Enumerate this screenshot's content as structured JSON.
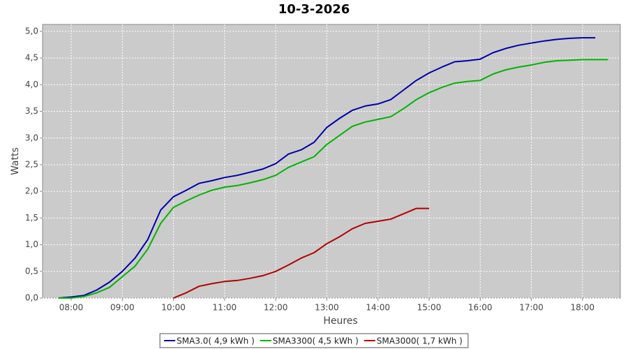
{
  "chart_data": {
    "type": "line",
    "title": "10-3-2026",
    "x_label": "Heures",
    "y_label": "Watts",
    "x": [
      7.75,
      8,
      8.25,
      8.5,
      8.75,
      9,
      9.25,
      9.5,
      9.75,
      10,
      10.25,
      10.5,
      10.75,
      11,
      11.25,
      11.5,
      11.75,
      12,
      12.25,
      12.5,
      12.75,
      13,
      13.25,
      13.5,
      13.75,
      14,
      14.25,
      14.5,
      14.75,
      15,
      15.25,
      15.5,
      15.75,
      16,
      16.25,
      16.5,
      16.75,
      17,
      17.25,
      17.5,
      17.75,
      18,
      18.25,
      18.5
    ],
    "series": [
      {
        "name": "SMA3.0( 4,9 kWh )",
        "color": "#0000aa",
        "values": [
          0.0,
          0.02,
          0.05,
          0.15,
          0.3,
          0.5,
          0.75,
          1.1,
          1.65,
          1.9,
          2.02,
          2.15,
          2.2,
          2.26,
          2.3,
          2.36,
          2.42,
          2.52,
          2.7,
          2.78,
          2.92,
          3.2,
          3.37,
          3.52,
          3.6,
          3.64,
          3.72,
          3.9,
          4.08,
          4.22,
          4.33,
          4.43,
          4.45,
          4.48,
          4.6,
          4.68,
          4.74,
          4.78,
          4.82,
          4.85,
          4.87,
          4.88,
          4.88,
          null
        ]
      },
      {
        "name": "SMA3300( 4,5 kWh )",
        "color": "#00b400",
        "values": [
          0.0,
          0.0,
          0.03,
          0.1,
          0.2,
          0.4,
          0.6,
          0.92,
          1.4,
          1.7,
          1.82,
          1.93,
          2.02,
          2.08,
          2.11,
          2.16,
          2.22,
          2.3,
          2.45,
          2.55,
          2.65,
          2.88,
          3.05,
          3.22,
          3.3,
          3.35,
          3.4,
          3.55,
          3.72,
          3.85,
          3.95,
          4.03,
          4.06,
          4.08,
          4.2,
          4.28,
          4.33,
          4.37,
          4.42,
          4.45,
          4.46,
          4.47,
          4.47,
          4.47
        ]
      },
      {
        "name": "SMA3000( 1,7 kWh )",
        "color": "#b40000",
        "values": [
          null,
          null,
          null,
          null,
          null,
          null,
          null,
          null,
          null,
          0.0,
          0.1,
          0.22,
          0.27,
          0.31,
          0.33,
          0.37,
          0.42,
          0.5,
          0.62,
          0.75,
          0.85,
          1.02,
          1.15,
          1.3,
          1.4,
          1.44,
          1.48,
          1.58,
          1.68,
          1.68,
          null,
          null,
          null,
          null,
          null,
          null,
          null,
          null,
          null,
          null,
          null,
          null,
          null,
          null
        ]
      }
    ],
    "xlim": [
      7.44,
      18.74
    ],
    "xticks": [
      {
        "value": 8,
        "label": "08:00"
      },
      {
        "value": 9,
        "label": "09:00"
      },
      {
        "value": 10,
        "label": "10:00"
      },
      {
        "value": 11,
        "label": "11:00"
      },
      {
        "value": 12,
        "label": "12:00"
      },
      {
        "value": 13,
        "label": "13:00"
      },
      {
        "value": 14,
        "label": "14:00"
      },
      {
        "value": 15,
        "label": "15:00"
      },
      {
        "value": 16,
        "label": "16:00"
      },
      {
        "value": 17,
        "label": "17:00"
      },
      {
        "value": 18,
        "label": "18:00"
      }
    ],
    "ylim": [
      0,
      5.13
    ],
    "yticks": [
      {
        "value": 0,
        "label": "0,0"
      },
      {
        "value": 0.5,
        "label": "0,5"
      },
      {
        "value": 1,
        "label": "1,0"
      },
      {
        "value": 1.5,
        "label": "1,5"
      },
      {
        "value": 2,
        "label": "2,0"
      },
      {
        "value": 2.5,
        "label": "2,5"
      },
      {
        "value": 3,
        "label": "3,0"
      },
      {
        "value": 3.5,
        "label": "3,5"
      },
      {
        "value": 4,
        "label": "4,0"
      },
      {
        "value": 4.5,
        "label": "4,5"
      },
      {
        "value": 5,
        "label": "5,0"
      }
    ],
    "grid": true,
    "legend": "bottom"
  }
}
